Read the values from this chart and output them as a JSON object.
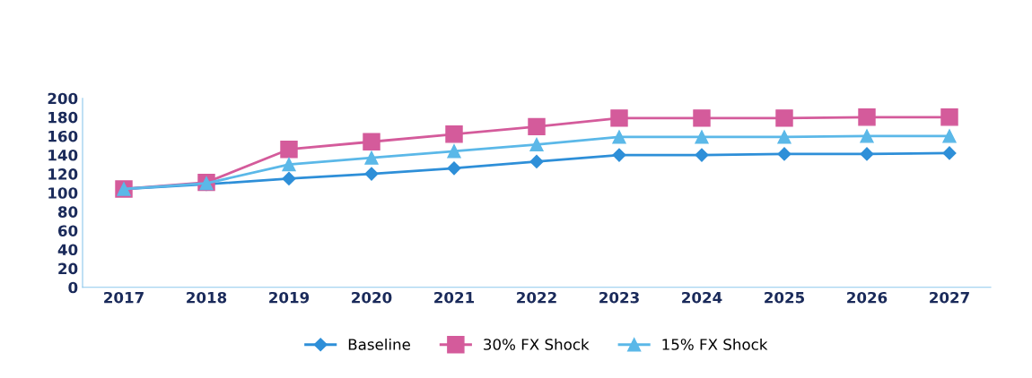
{
  "chart_data": {
    "type": "line",
    "categories": [
      "2017",
      "2018",
      "2019",
      "2020",
      "2021",
      "2022",
      "2023",
      "2024",
      "2025",
      "2026",
      "2027"
    ],
    "series": [
      {
        "name": "Baseline",
        "color": "#2e8fd8",
        "marker": "diamond",
        "values": [
          104,
          109,
          115,
          120,
          126,
          133,
          140,
          140,
          141,
          141,
          142
        ]
      },
      {
        "name": "30% FX Shock",
        "color": "#d45b9b",
        "marker": "square",
        "values": [
          104,
          111,
          146,
          154,
          162,
          170,
          179,
          179,
          179,
          180,
          180
        ]
      },
      {
        "name": "15% FX Shock",
        "color": "#5bb8e8",
        "marker": "triangle",
        "values": [
          104,
          110,
          130,
          137,
          144,
          151,
          159,
          159,
          159,
          160,
          160
        ]
      }
    ],
    "ylim": [
      0,
      200
    ],
    "yticks": [
      0,
      20,
      40,
      60,
      80,
      100,
      120,
      140,
      160,
      180,
      200
    ],
    "grid": false,
    "legend": "bottom"
  }
}
